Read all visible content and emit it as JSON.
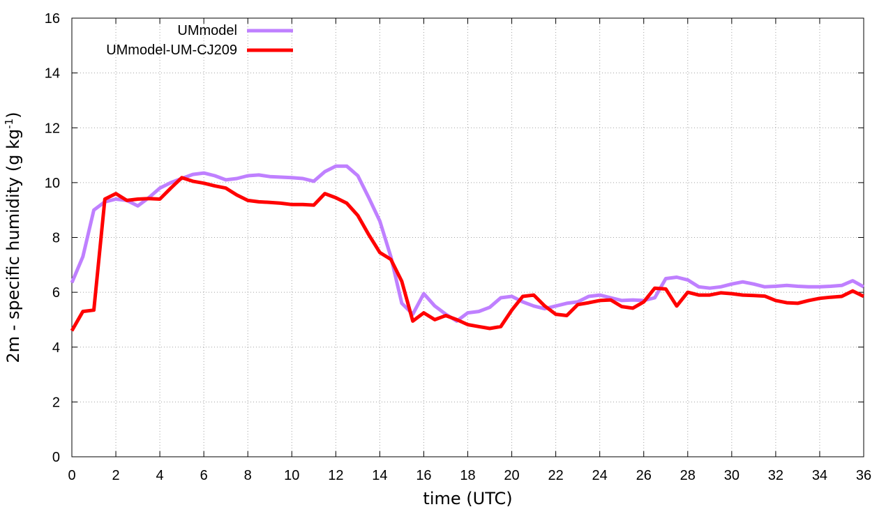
{
  "chart_data": {
    "type": "line",
    "title": "",
    "xlabel": "time (UTC)",
    "ylabel": "2m - specific humidity (g kg",
    "ylabel_sup": "-1",
    "ylabel_close": ")",
    "xlim": [
      0,
      36
    ],
    "ylim": [
      0,
      16
    ],
    "xticks": [
      0,
      2,
      4,
      6,
      8,
      10,
      12,
      14,
      16,
      18,
      20,
      22,
      24,
      26,
      28,
      30,
      32,
      34,
      36
    ],
    "yticks": [
      0,
      2,
      4,
      6,
      8,
      10,
      12,
      14,
      16
    ],
    "grid": true,
    "legend_position": "top-left",
    "series": [
      {
        "name": "UMmodel",
        "color": "#bf80ff",
        "x": [
          0,
          0.5,
          1,
          1.5,
          2,
          2.5,
          3,
          3.5,
          4,
          4.5,
          5,
          5.5,
          6,
          6.5,
          7,
          7.5,
          8,
          8.5,
          9,
          9.5,
          10,
          10.5,
          11,
          11.5,
          12,
          12.5,
          13,
          13.5,
          14,
          14.5,
          15,
          15.5,
          16,
          16.5,
          17,
          17.5,
          18,
          18.5,
          19,
          19.5,
          20,
          20.5,
          21,
          21.5,
          22,
          22.5,
          23,
          23.5,
          24,
          24.5,
          25,
          25.5,
          26,
          26.5,
          27,
          27.5,
          28,
          28.5,
          29,
          29.5,
          30,
          30.5,
          31,
          31.5,
          32,
          32.5,
          33,
          33.5,
          34,
          34.5,
          35,
          35.5,
          36
        ],
        "values": [
          6.35,
          7.3,
          9.0,
          9.3,
          9.4,
          9.35,
          9.15,
          9.45,
          9.8,
          10.0,
          10.15,
          10.3,
          10.35,
          10.25,
          10.1,
          10.15,
          10.25,
          10.28,
          10.22,
          10.2,
          10.18,
          10.15,
          10.05,
          10.4,
          10.6,
          10.6,
          10.25,
          9.45,
          8.6,
          7.3,
          5.6,
          5.2,
          5.95,
          5.5,
          5.2,
          4.95,
          5.25,
          5.3,
          5.45,
          5.8,
          5.85,
          5.65,
          5.5,
          5.4,
          5.5,
          5.6,
          5.65,
          5.85,
          5.9,
          5.8,
          5.7,
          5.72,
          5.7,
          5.8,
          6.5,
          6.55,
          6.45,
          6.2,
          6.15,
          6.2,
          6.3,
          6.38,
          6.3,
          6.2,
          6.22,
          6.25,
          6.22,
          6.2,
          6.2,
          6.22,
          6.25,
          6.42,
          6.2
        ]
      },
      {
        "name": "UMmodel-UM-CJ209",
        "color": "#ff0000",
        "x": [
          0,
          0.5,
          1,
          1.5,
          2,
          2.5,
          3,
          3.5,
          4,
          4.5,
          5,
          5.5,
          6,
          6.5,
          7,
          7.5,
          8,
          8.5,
          9,
          9.5,
          10,
          10.5,
          11,
          11.5,
          12,
          12.5,
          13,
          13.5,
          14,
          14.5,
          15,
          15.5,
          16,
          16.5,
          17,
          17.5,
          18,
          18.5,
          19,
          19.5,
          20,
          20.5,
          21,
          21.5,
          22,
          22.5,
          23,
          23.5,
          24,
          24.5,
          25,
          25.5,
          26,
          26.5,
          27,
          27.5,
          28,
          28.5,
          29,
          29.5,
          30,
          30.5,
          31,
          31.5,
          32,
          32.5,
          33,
          33.5,
          34,
          34.5,
          35,
          35.5,
          36
        ],
        "values": [
          4.6,
          5.3,
          5.35,
          9.4,
          9.6,
          9.35,
          9.4,
          9.42,
          9.4,
          9.8,
          10.18,
          10.05,
          9.98,
          9.88,
          9.8,
          9.55,
          9.35,
          9.3,
          9.28,
          9.25,
          9.2,
          9.2,
          9.18,
          9.6,
          9.45,
          9.25,
          8.8,
          8.1,
          7.45,
          7.2,
          6.4,
          4.95,
          5.25,
          5.0,
          5.15,
          5.0,
          4.82,
          4.75,
          4.68,
          4.75,
          5.35,
          5.85,
          5.9,
          5.5,
          5.2,
          5.15,
          5.55,
          5.62,
          5.7,
          5.72,
          5.48,
          5.42,
          5.65,
          6.15,
          6.12,
          5.5,
          6.0,
          5.9,
          5.9,
          5.98,
          5.95,
          5.9,
          5.88,
          5.86,
          5.7,
          5.62,
          5.6,
          5.7,
          5.78,
          5.82,
          5.85,
          6.05,
          5.85
        ]
      }
    ]
  }
}
